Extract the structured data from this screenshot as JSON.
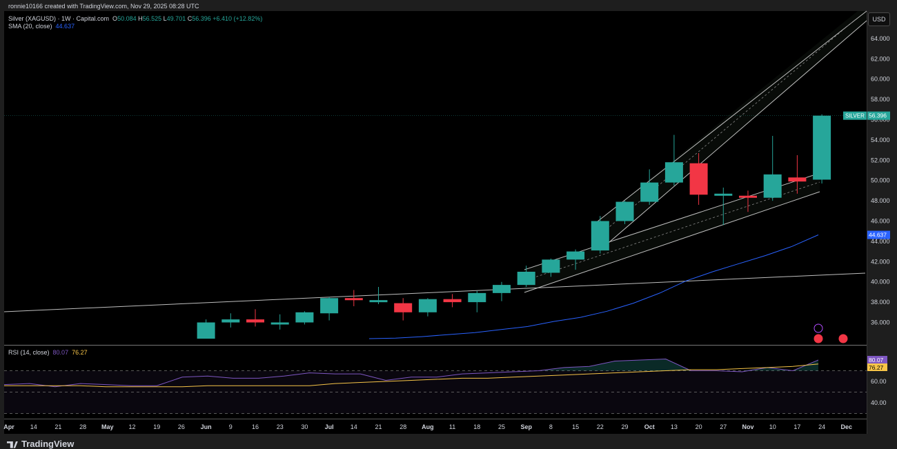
{
  "header": {
    "created": "ronnie10166 created with TradingView.com, Nov 29, 2025 08:28 UTC",
    "legend_title": "Silver (XAGUSD) · 1W · Capital.com",
    "ohlc": {
      "o_label": "O",
      "o": "50.084",
      "h_label": "H",
      "h": "56.525",
      "l_label": "L",
      "l": "49.701",
      "c_label": "C",
      "c": "56.396",
      "change": "+6.410 (+12.82%)"
    },
    "sma_label": "SMA (20, close)",
    "sma_value": "44.637",
    "rsi_label": "RSI (14, close)",
    "rsi_value": "80.07",
    "rsi_ma_value": "76.27"
  },
  "currency_button": "USD",
  "footer": {
    "brand": "TradingView"
  },
  "colors": {
    "up": "#26a69a",
    "down": "#f23645",
    "sma": "#2962ff",
    "rsi": "#7e57c2",
    "rsi_ma": "#f7c548",
    "background": "#000000"
  },
  "chart_data": [
    {
      "type": "candlestick",
      "title": "Silver (XAGUSD) · 1W · Capital.com",
      "price_axis": {
        "ticks": [
          36,
          38,
          40,
          42,
          44,
          46,
          48,
          50,
          52,
          54,
          56,
          58,
          60,
          62,
          64
        ],
        "tick_labels": [
          "36.000",
          "38.000",
          "40.000",
          "42.000",
          "44.000",
          "46.000",
          "48.000",
          "50.000",
          "52.000",
          "54.000",
          "56.000",
          "58.000",
          "60.000",
          "62.000",
          "64.000"
        ],
        "range": [
          34.4,
          66.0
        ]
      },
      "x_labels": [
        "Apr",
        "14",
        "21",
        "28",
        "May",
        "12",
        "19",
        "26",
        "Jun",
        "9",
        "16",
        "23",
        "30",
        "Jul",
        "14",
        "21",
        "28",
        "Aug",
        "11",
        "18",
        "25",
        "Sep",
        "8",
        "15",
        "22",
        "29",
        "Oct",
        "13",
        "20",
        "27",
        "Nov",
        "10",
        "17",
        "24",
        "Dec"
      ],
      "candles": [
        {
          "week": "Jun 2",
          "o": 34.4,
          "h": 36.3,
          "l": 34.4,
          "c": 36.0
        },
        {
          "week": "Jun 9",
          "o": 36.0,
          "h": 36.9,
          "l": 35.5,
          "c": 36.3
        },
        {
          "week": "Jun 16",
          "o": 36.3,
          "h": 37.3,
          "l": 35.6,
          "c": 36.0
        },
        {
          "week": "Jun 23",
          "o": 36.0,
          "h": 36.8,
          "l": 35.3,
          "c": 36.0
        },
        {
          "week": "Jun 30",
          "o": 36.0,
          "h": 37.1,
          "l": 35.8,
          "c": 37.0
        },
        {
          "week": "Jul 7",
          "o": 36.9,
          "h": 38.5,
          "l": 36.2,
          "c": 38.4
        },
        {
          "week": "Jul 14",
          "o": 38.4,
          "h": 39.2,
          "l": 37.6,
          "c": 38.2
        },
        {
          "week": "Jul 21",
          "o": 38.2,
          "h": 39.5,
          "l": 37.8,
          "c": 38.2
        },
        {
          "week": "Jul 28",
          "o": 37.9,
          "h": 38.4,
          "l": 36.2,
          "c": 37.0
        },
        {
          "week": "Aug 4",
          "o": 37.0,
          "h": 38.4,
          "l": 36.6,
          "c": 38.3
        },
        {
          "week": "Aug 11",
          "o": 38.3,
          "h": 38.8,
          "l": 37.5,
          "c": 38.0
        },
        {
          "week": "Aug 18",
          "o": 38.0,
          "h": 39.1,
          "l": 37.0,
          "c": 38.9
        },
        {
          "week": "Aug 25",
          "o": 38.9,
          "h": 40.0,
          "l": 38.1,
          "c": 39.7
        },
        {
          "week": "Sep 1",
          "o": 39.7,
          "h": 41.6,
          "l": 39.5,
          "c": 41.0
        },
        {
          "week": "Sep 8",
          "o": 40.9,
          "h": 42.3,
          "l": 40.5,
          "c": 42.2
        },
        {
          "week": "Sep 15",
          "o": 42.2,
          "h": 43.2,
          "l": 41.2,
          "c": 43.0
        },
        {
          "week": "Sep 22",
          "o": 43.1,
          "h": 46.5,
          "l": 42.8,
          "c": 46.0
        },
        {
          "week": "Sep 29",
          "o": 46.0,
          "h": 48.0,
          "l": 45.7,
          "c": 47.9
        },
        {
          "week": "Oct 6",
          "o": 47.9,
          "h": 51.1,
          "l": 47.6,
          "c": 49.8
        },
        {
          "week": "Oct 13",
          "o": 49.8,
          "h": 54.5,
          "l": 49.5,
          "c": 51.8
        },
        {
          "week": "Oct 20",
          "o": 51.7,
          "h": 52.7,
          "l": 47.6,
          "c": 48.6
        },
        {
          "week": "Oct 27",
          "o": 48.5,
          "h": 49.3,
          "l": 45.6,
          "c": 48.7
        },
        {
          "week": "Nov 3",
          "o": 48.5,
          "h": 49.0,
          "l": 46.9,
          "c": 48.3
        },
        {
          "week": "Nov 10",
          "o": 48.3,
          "h": 54.4,
          "l": 48.0,
          "c": 50.6
        },
        {
          "week": "Nov 17",
          "o": 50.3,
          "h": 52.5,
          "l": 48.7,
          "c": 49.9
        },
        {
          "week": "Nov 24",
          "o": 50.084,
          "h": 56.525,
          "l": 49.701,
          "c": 56.396
        }
      ],
      "sma20": {
        "name": "SMA (20, close)",
        "last": 44.637,
        "values": [
          34.4,
          34.45,
          34.6,
          34.8,
          35.0,
          35.3,
          35.6,
          36.1,
          36.5,
          37.1,
          37.9,
          38.9,
          40.1,
          41.0,
          41.8,
          42.6,
          43.5,
          44.637
        ]
      },
      "price_label": {
        "name": "SILVER",
        "value": "56.396"
      },
      "sma_label": "44.637"
    },
    {
      "type": "line",
      "title": "RSI (14, close)",
      "ylim": [
        30,
        80
      ],
      "ticks": [
        40,
        60
      ],
      "tick_labels": [
        "40.00",
        "60.00"
      ],
      "levels": [
        30,
        50,
        70
      ],
      "series": [
        {
          "name": "RSI",
          "values": [
            57,
            58,
            55,
            58,
            57,
            56,
            56,
            64,
            65,
            63,
            63,
            65,
            68,
            67,
            67,
            61,
            64,
            64,
            67,
            68,
            69,
            70,
            73,
            74,
            79,
            80,
            81,
            70,
            70,
            69,
            73,
            70,
            80.07
          ]
        },
        {
          "name": "RSI MA",
          "values": [
            56,
            56,
            56,
            56,
            55,
            55,
            55,
            55,
            56,
            56,
            56,
            56,
            56,
            58,
            59,
            60,
            61,
            62,
            63,
            63,
            64,
            65,
            66,
            67,
            68,
            69,
            70,
            71,
            71,
            72,
            73,
            74,
            76.27
          ]
        }
      ],
      "value_labels": [
        "80.07",
        "76.27"
      ]
    }
  ]
}
